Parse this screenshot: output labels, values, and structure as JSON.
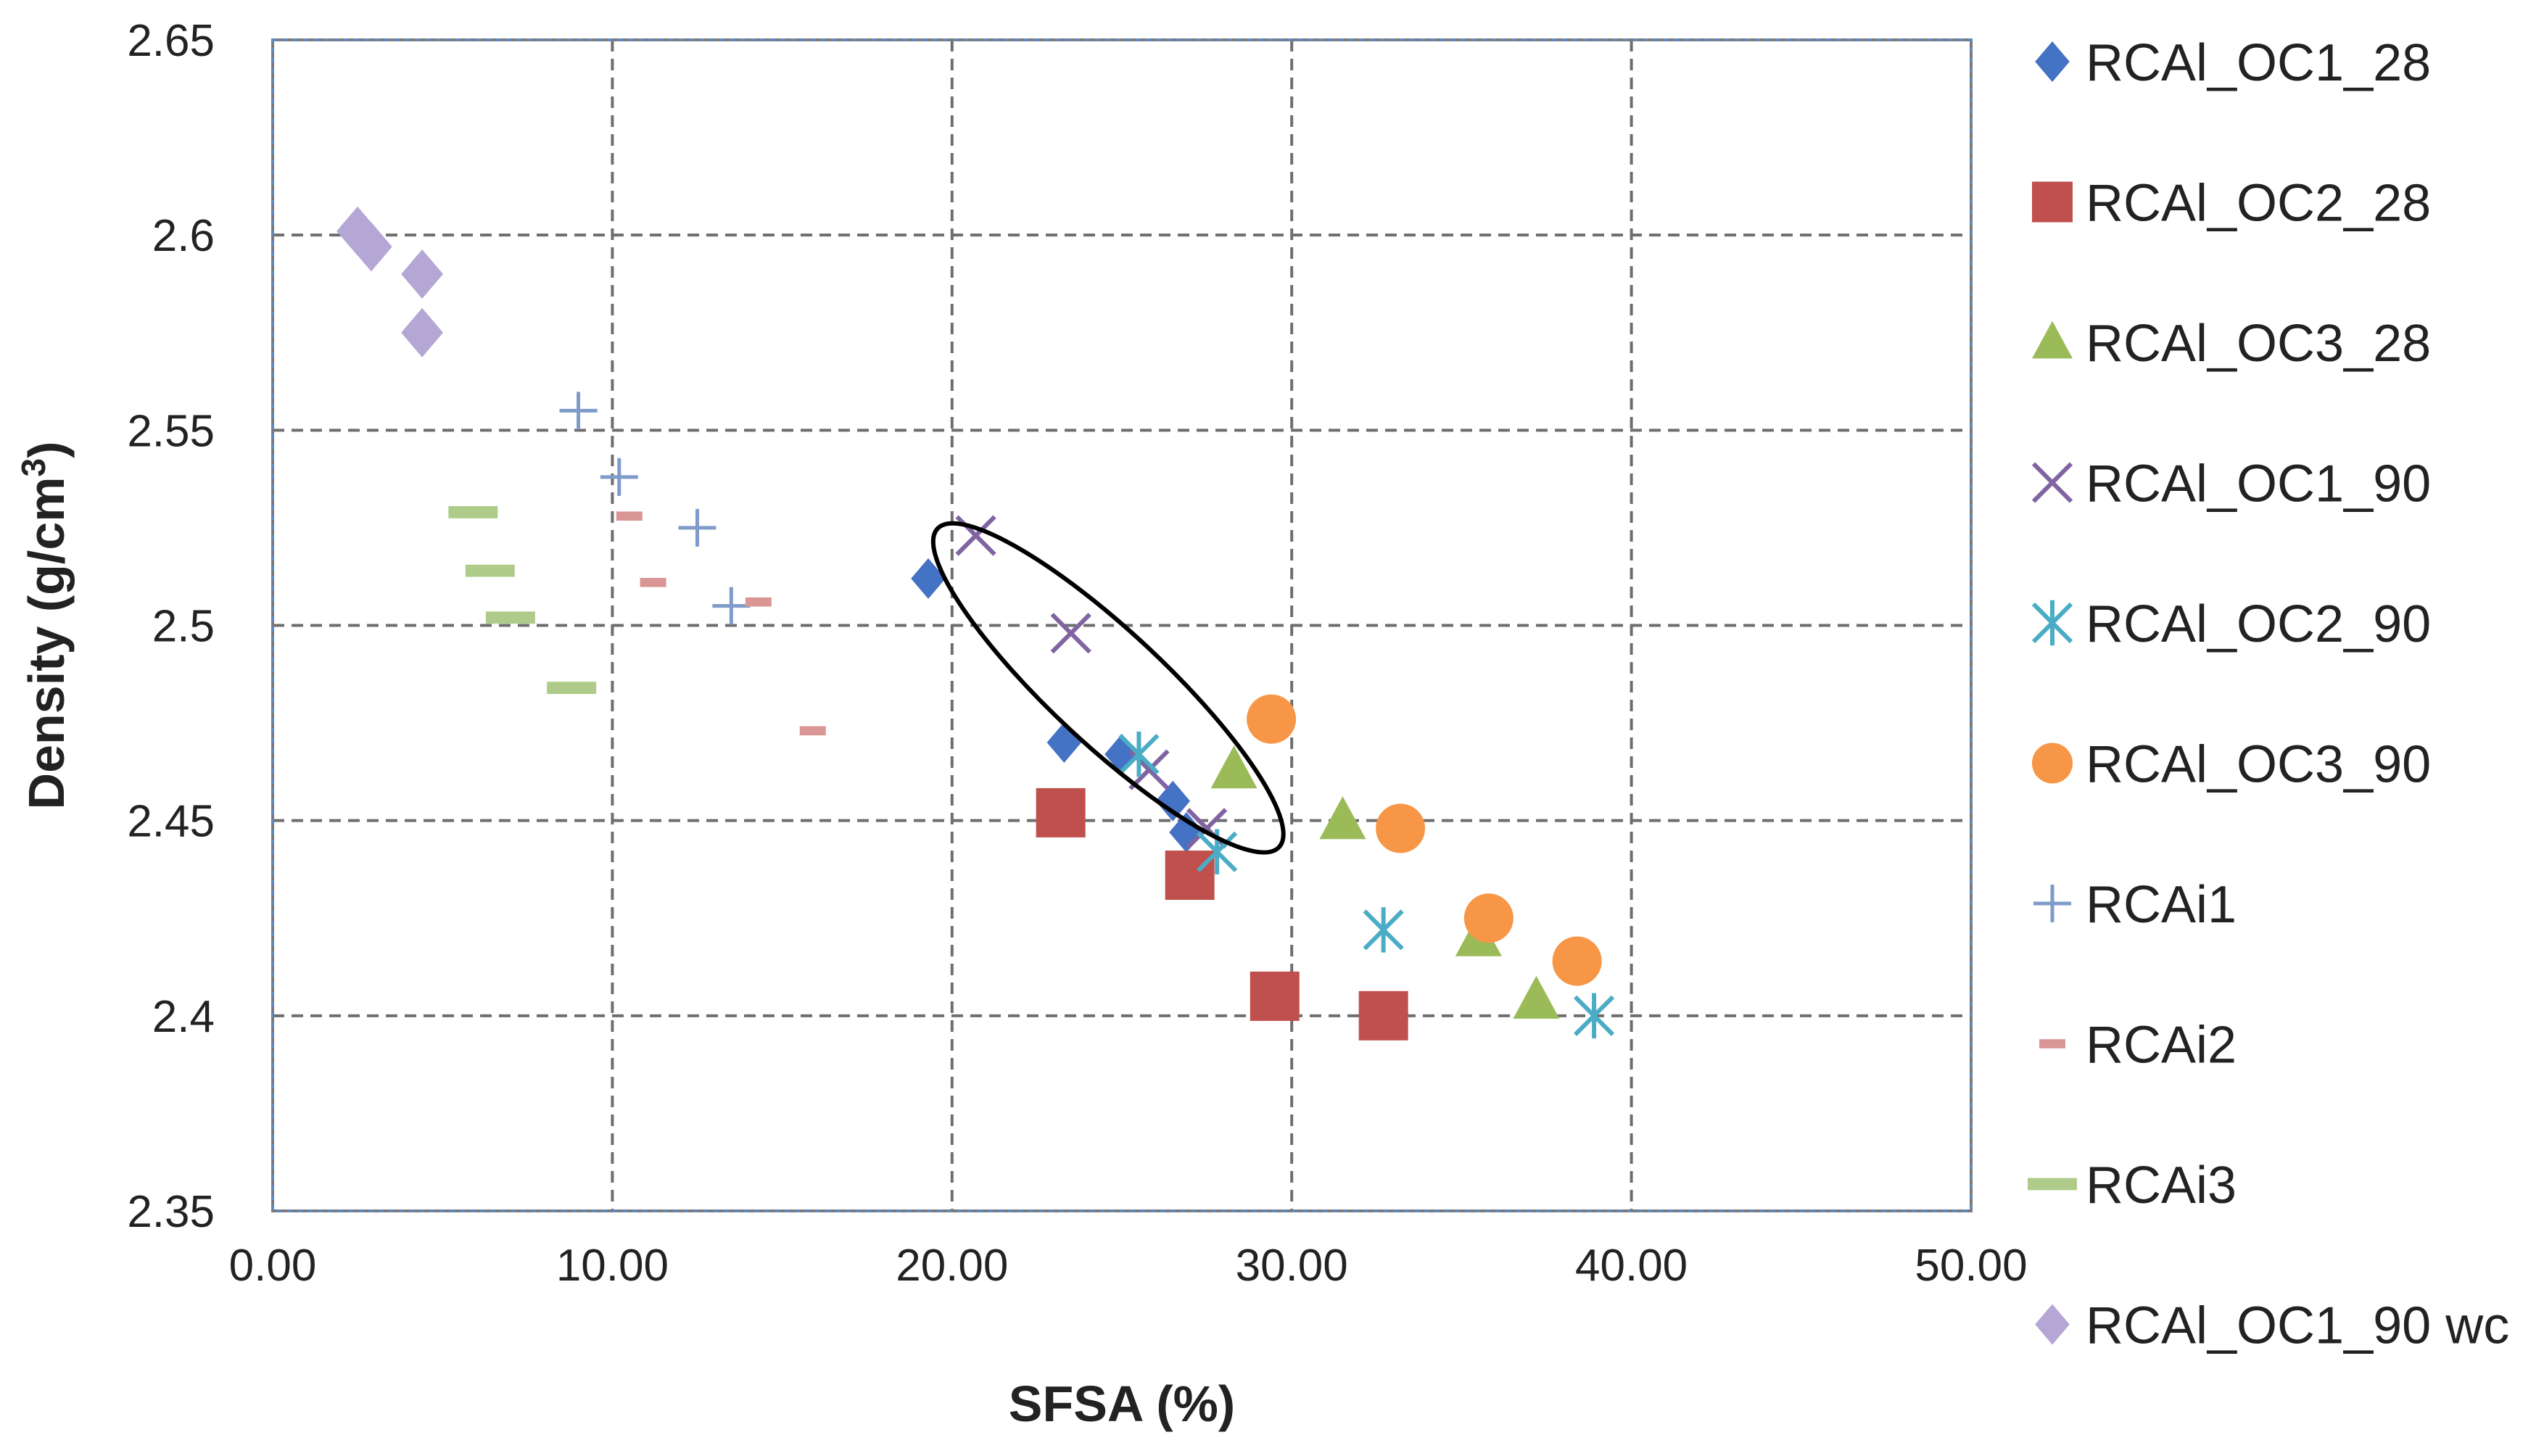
{
  "chart_data": {
    "type": "scatter",
    "title": "",
    "xlabel": "SFSA (%)",
    "ylabel_main": "Density (g/cm",
    "ylabel_sup": "3",
    "ylabel_end": ")",
    "xlim": [
      0,
      50
    ],
    "ylim": [
      2.35,
      2.65
    ],
    "x_ticks": [
      0,
      10,
      20,
      30,
      40,
      50
    ],
    "x_tick_labels": [
      "0.00",
      "10.00",
      "20.00",
      "30.00",
      "40.00",
      "50.00"
    ],
    "y_ticks": [
      2.35,
      2.4,
      2.45,
      2.5,
      2.55,
      2.6,
      2.65
    ],
    "y_tick_labels": [
      "2.35",
      "2.4",
      "2.45",
      "2.5",
      "2.55",
      "2.6",
      "2.65"
    ],
    "grid": true,
    "legend_position": "right",
    "series": [
      {
        "name": "RCAl_OC1_28",
        "marker": "diamond",
        "color": "#4472C4",
        "points": [
          [
            19.3,
            2.512
          ],
          [
            23.3,
            2.47
          ],
          [
            25.0,
            2.467
          ],
          [
            26.5,
            2.455
          ],
          [
            26.9,
            2.447
          ]
        ]
      },
      {
        "name": "RCAl_OC2_28",
        "marker": "square",
        "color": "#C0504D",
        "points": [
          [
            23.2,
            2.452
          ],
          [
            27.0,
            2.436
          ],
          [
            29.5,
            2.405
          ],
          [
            32.7,
            2.4
          ]
        ]
      },
      {
        "name": "RCAl_OC3_28",
        "marker": "triangle",
        "color": "#9BBB59",
        "points": [
          [
            28.3,
            2.463
          ],
          [
            31.5,
            2.45
          ],
          [
            35.5,
            2.42
          ],
          [
            37.2,
            2.404
          ]
        ]
      },
      {
        "name": "RCAl_OC1_90",
        "marker": "x",
        "color": "#8064A2",
        "points": [
          [
            20.7,
            2.523
          ],
          [
            23.5,
            2.498
          ],
          [
            25.8,
            2.463
          ],
          [
            27.5,
            2.448
          ]
        ]
      },
      {
        "name": "RCAl_OC2_90",
        "marker": "asterisk",
        "color": "#4BACC6",
        "points": [
          [
            25.5,
            2.467
          ],
          [
            27.8,
            2.442
          ],
          [
            32.7,
            2.422
          ],
          [
            38.9,
            2.4
          ]
        ]
      },
      {
        "name": "RCAl_OC3_90",
        "marker": "circle",
        "color": "#F79646",
        "points": [
          [
            29.4,
            2.476
          ],
          [
            33.2,
            2.448
          ],
          [
            35.8,
            2.425
          ],
          [
            38.4,
            2.414
          ]
        ]
      },
      {
        "name": "RCAi1",
        "marker": "plus",
        "color": "#7F9BC9",
        "points": [
          [
            9.0,
            2.555
          ],
          [
            10.2,
            2.538
          ],
          [
            12.5,
            2.525
          ],
          [
            13.5,
            2.505
          ]
        ]
      },
      {
        "name": "RCAi2",
        "marker": "dash",
        "color": "#D99694",
        "points": [
          [
            10.5,
            2.528
          ],
          [
            11.2,
            2.511
          ],
          [
            14.3,
            2.506
          ],
          [
            15.9,
            2.473
          ]
        ]
      },
      {
        "name": "RCAi3",
        "marker": "dash-long",
        "color": "#AFCB8A",
        "points": [
          [
            5.9,
            2.529
          ],
          [
            6.4,
            2.514
          ],
          [
            7.0,
            2.502
          ],
          [
            8.8,
            2.484
          ]
        ]
      },
      {
        "name": "RCAl_OC1_90 wc",
        "marker": "diamond",
        "color": "#B4A7D6",
        "points": [
          [
            2.5,
            2.601
          ],
          [
            2.9,
            2.597
          ],
          [
            4.4,
            2.59
          ],
          [
            4.4,
            2.575
          ]
        ]
      }
    ],
    "annotations": [
      {
        "type": "ellipse",
        "description": "highlight around RCAl_OC1_90 trend",
        "center": [
          24.6,
          2.484
        ],
        "color": "#000000"
      }
    ]
  }
}
